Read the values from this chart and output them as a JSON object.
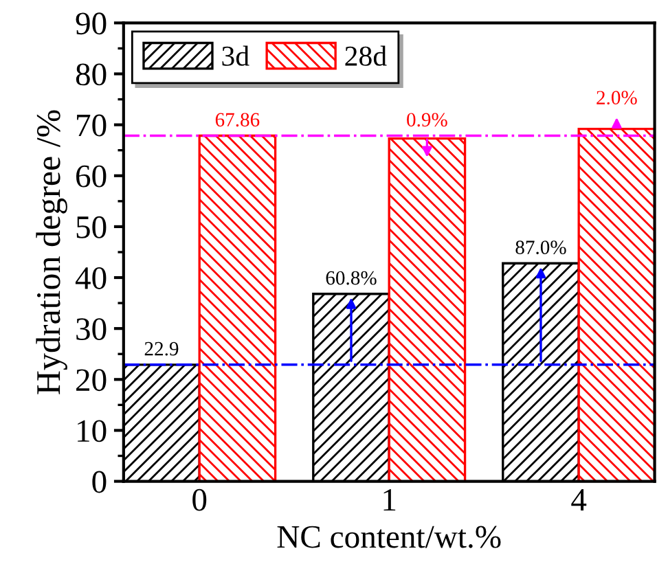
{
  "chart_data": {
    "type": "bar",
    "xlabel": "NC content/wt.%",
    "ylabel": "Hydration degree /%",
    "categories": [
      "0",
      "1",
      "4"
    ],
    "series": [
      {
        "name": "3d",
        "color": "#000000",
        "values": [
          22.9,
          36.8,
          42.8
        ],
        "value_labels": [
          "22.9",
          null,
          null
        ]
      },
      {
        "name": "28d",
        "color": "#ff0000",
        "values": [
          67.86,
          67.3,
          69.2
        ],
        "value_labels": [
          "67.86",
          null,
          null
        ]
      }
    ],
    "annotations": [
      {
        "text": "60.8%",
        "x": "1",
        "y": 36.8
      },
      {
        "text": "87.0%",
        "x": "4",
        "y": 42.8
      },
      {
        "text": "0.9%",
        "x": "1",
        "y": 67.3
      },
      {
        "text": "2.0%",
        "x": "4",
        "y": 69.2
      }
    ],
    "ylim": [
      0,
      90
    ],
    "yticks": [
      0,
      10,
      20,
      30,
      40,
      50,
      60,
      70,
      80,
      90
    ],
    "ref_lines": [
      {
        "axis": "y",
        "value": 22.9,
        "color": "#0000ff",
        "line_style": "dashdot"
      },
      {
        "axis": "y",
        "value": 67.86,
        "color": "#ff00ff",
        "line_style": "dashdot"
      }
    ],
    "grid": false,
    "legend": "top left"
  }
}
